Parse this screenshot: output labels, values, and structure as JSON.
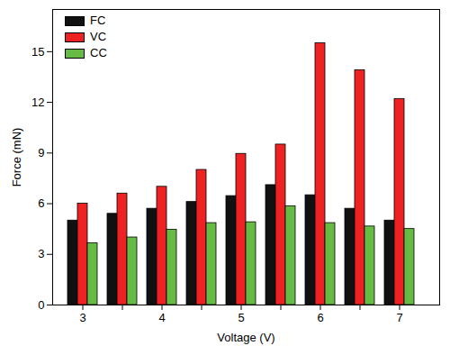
{
  "chart_data": {
    "type": "bar",
    "x_label": "Voltage (V)",
    "y_label": "Force (mN)",
    "categories": [
      "3",
      null,
      "4",
      null,
      "5",
      null,
      "6",
      null,
      "7"
    ],
    "series": [
      {
        "name": "FC",
        "color": "#111111",
        "values": [
          5.0,
          5.4,
          5.7,
          6.1,
          6.45,
          7.1,
          6.5,
          5.7,
          5.0
        ]
      },
      {
        "name": "VC",
        "color": "#ee2222",
        "values": [
          6.0,
          6.6,
          7.0,
          8.0,
          8.95,
          9.5,
          15.5,
          13.9,
          12.2
        ]
      },
      {
        "name": "CC",
        "color": "#66bb44",
        "values": [
          3.65,
          4.0,
          4.45,
          4.85,
          4.9,
          5.85,
          4.85,
          4.65,
          4.5
        ]
      }
    ],
    "ylim": [
      0,
      17.5
    ],
    "yticks": [
      0,
      3,
      6,
      9,
      12,
      15
    ],
    "grid": false,
    "legend": "upper left"
  }
}
